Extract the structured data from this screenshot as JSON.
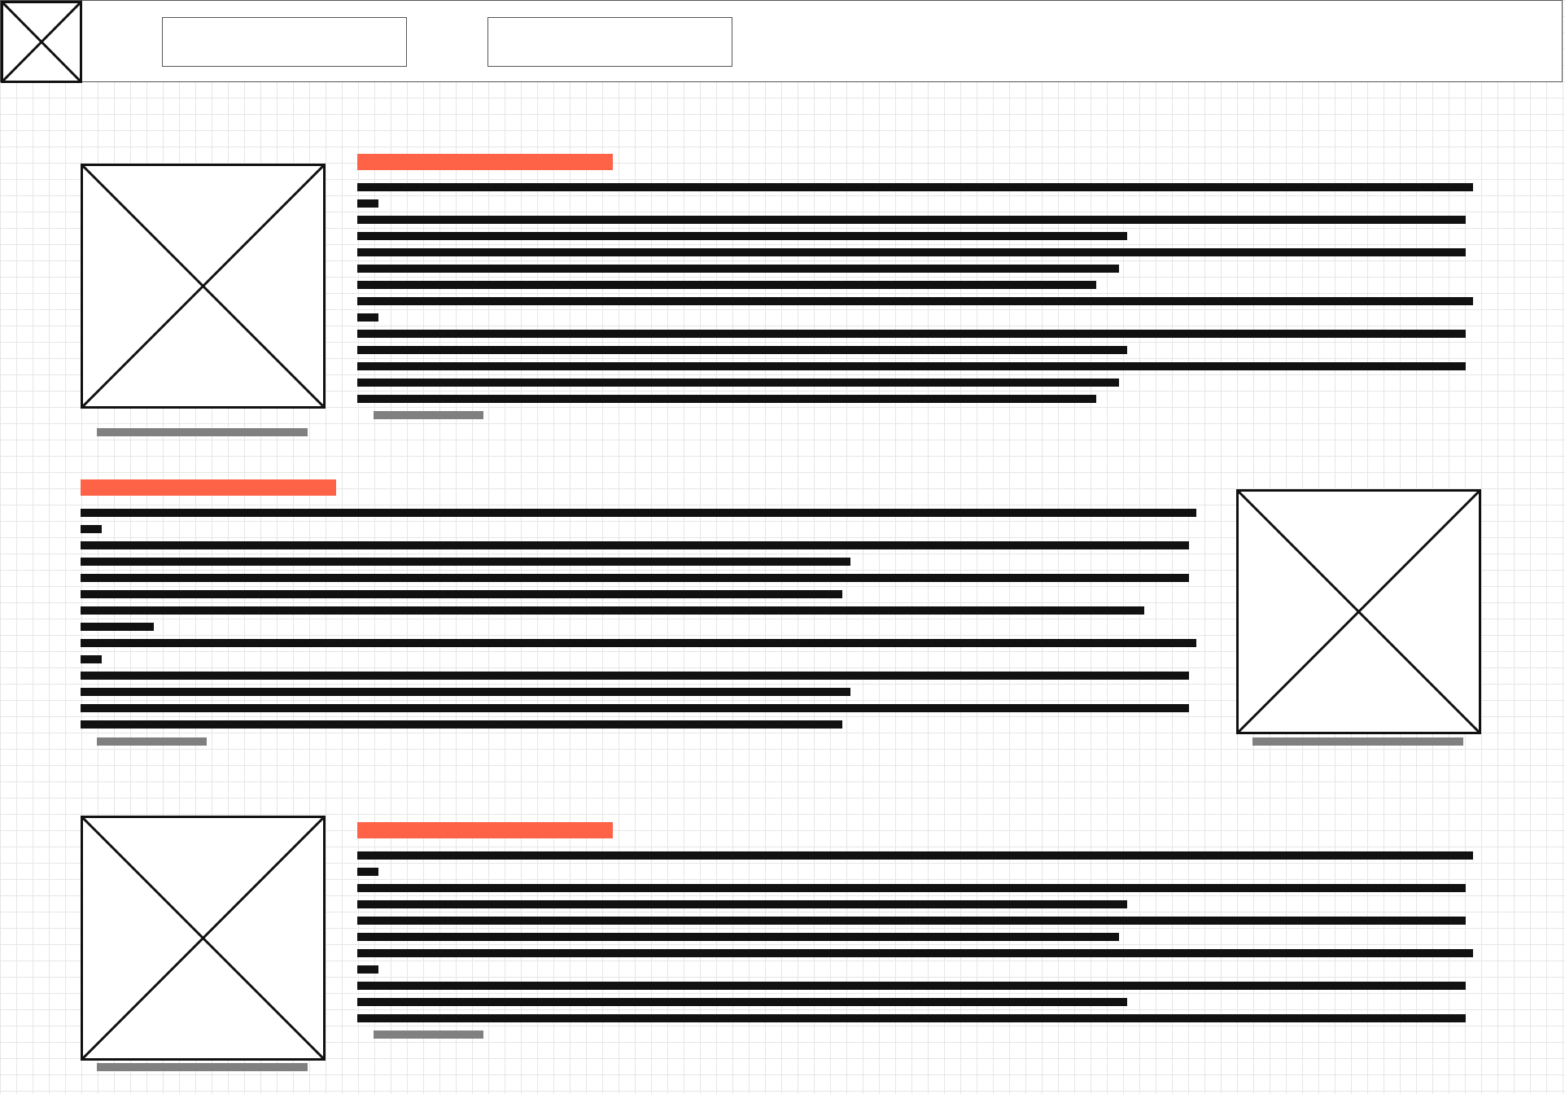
{
  "palette": {
    "heading_accent": "#ff6347",
    "text_placeholder": "#111111",
    "caption_placeholder": "#808080",
    "grid_line": "#e6e6e6",
    "border": "#111111"
  },
  "header": {
    "logo_icon": "image-placeholder-icon",
    "nav_items": [
      {
        "label": ""
      },
      {
        "label": ""
      }
    ]
  },
  "sections": [
    {
      "image_side": "left",
      "heading": "",
      "line_count": 14,
      "caption": ""
    },
    {
      "image_side": "right",
      "heading": "",
      "line_count": 14,
      "caption": ""
    },
    {
      "image_side": "left",
      "heading": "",
      "line_count": 11,
      "caption": ""
    }
  ]
}
